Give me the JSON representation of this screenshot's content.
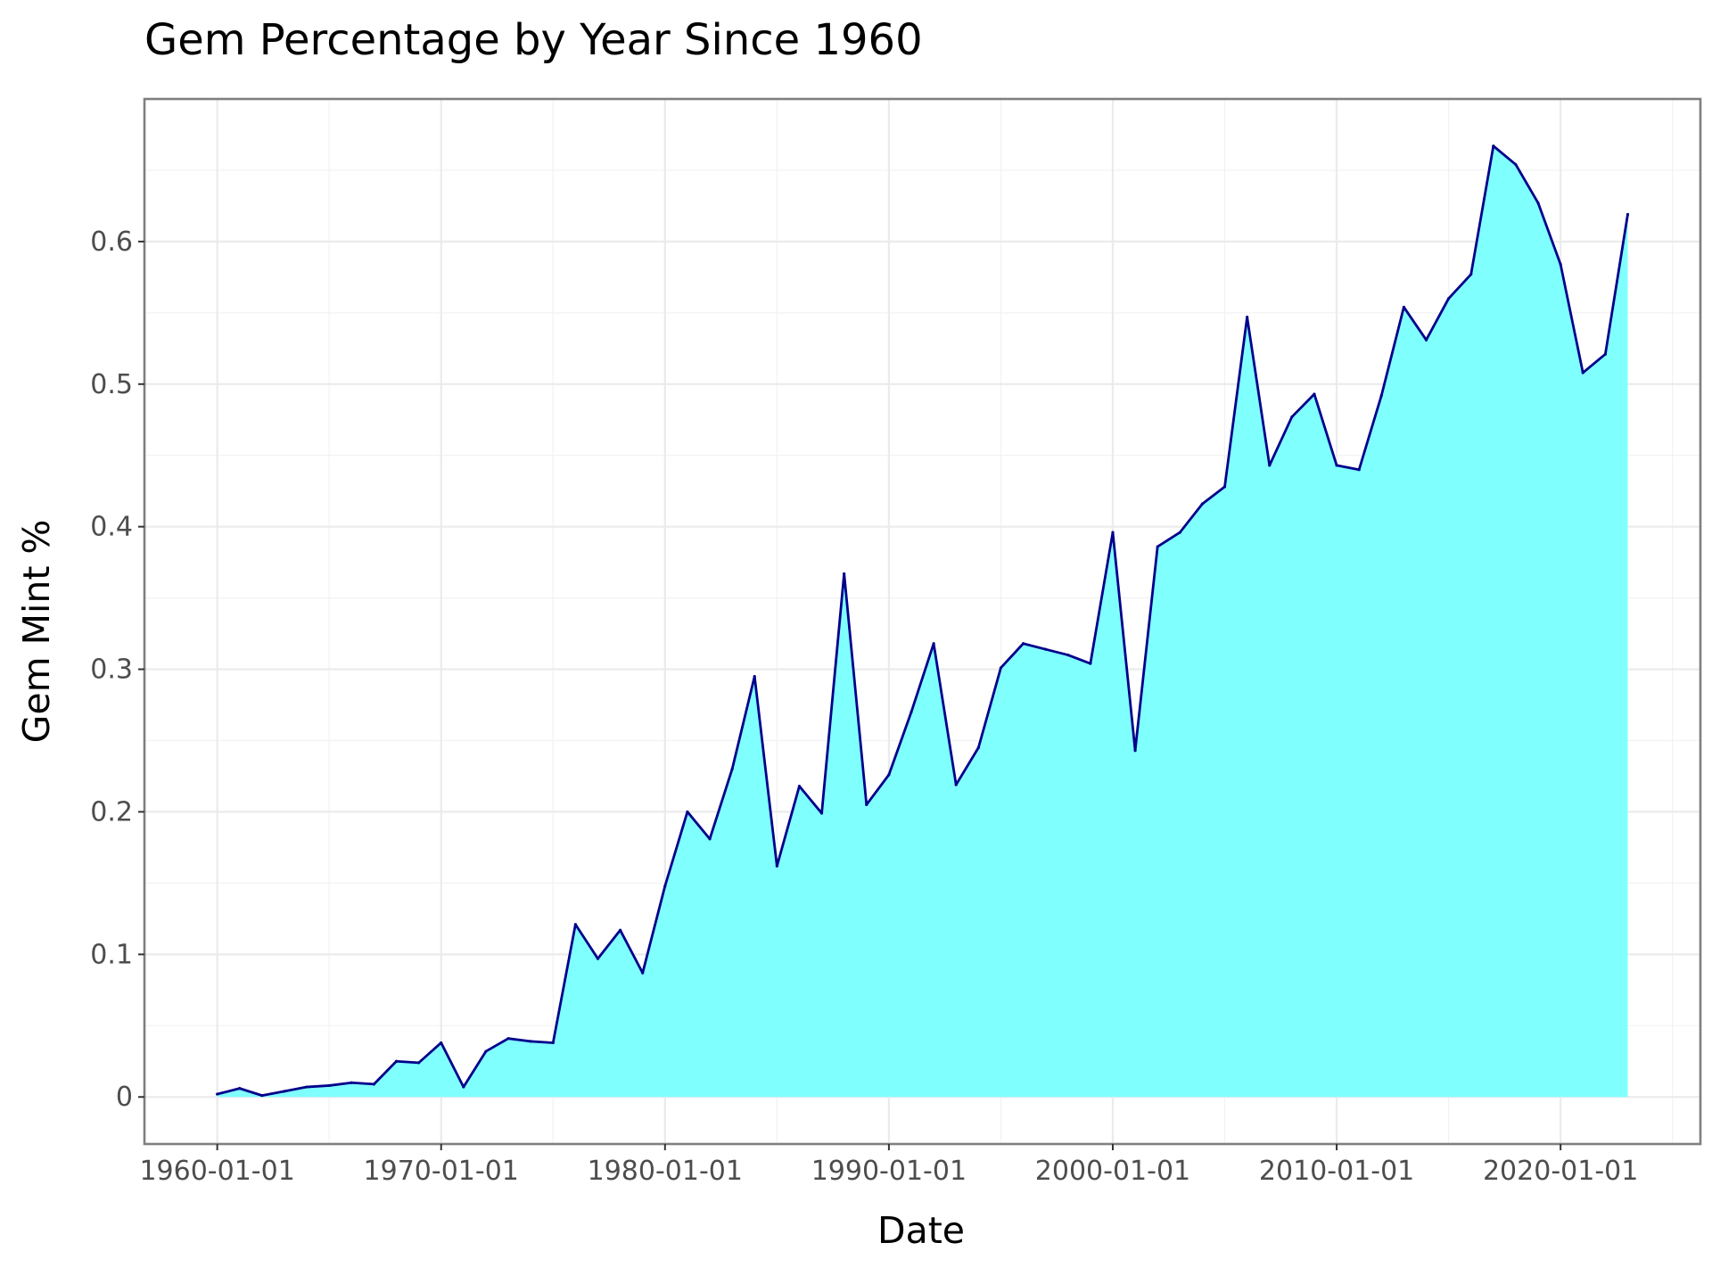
{
  "chart_data": {
    "type": "area",
    "title": "Gem Percentage by Year Since 1960",
    "xlabel": "Date",
    "ylabel": "Gem Mint %",
    "x_ticks": [
      "1960-01-01",
      "1970-01-01",
      "1980-01-01",
      "1990-01-01",
      "2000-01-01",
      "2010-01-01",
      "2020-01-01"
    ],
    "y_ticks": [
      "0",
      "0.1",
      "0.2",
      "0.3",
      "0.4",
      "0.5",
      "0.6"
    ],
    "x_range": [
      "1956-10-01",
      "2026-04-01"
    ],
    "ylim": [
      -0.033,
      0.7
    ],
    "grid": true,
    "fill_color": "#80ffff",
    "line_color": "#00008b",
    "series": [
      {
        "x": [
          1960,
          1961,
          1962,
          1963,
          1964,
          1965,
          1966,
          1967,
          1968,
          1969,
          1970,
          1971,
          1972,
          1973,
          1974,
          1975,
          1976,
          1977,
          1978,
          1979,
          1980,
          1981,
          1982,
          1983,
          1984,
          1985,
          1986,
          1987,
          1988,
          1989,
          1990,
          1991,
          1992,
          1993,
          1994,
          1995,
          1996,
          1997,
          1998,
          1999,
          2000,
          2001,
          2002,
          2003,
          2004,
          2005,
          2006,
          2007,
          2008,
          2009,
          2010,
          2011,
          2012,
          2013,
          2014,
          2015,
          2016,
          2017,
          2018,
          2019,
          2020,
          2021,
          2022,
          2023
        ],
        "values": [
          0.002,
          0.006,
          0.001,
          0.004,
          0.007,
          0.008,
          0.01,
          0.009,
          0.025,
          0.024,
          0.038,
          0.007,
          0.032,
          0.041,
          0.039,
          0.038,
          0.121,
          0.097,
          0.117,
          0.087,
          0.148,
          0.2,
          0.181,
          0.23,
          0.295,
          0.162,
          0.218,
          0.199,
          0.367,
          0.205,
          0.226,
          0.27,
          0.318,
          0.219,
          0.245,
          0.301,
          0.318,
          0.314,
          0.31,
          0.304,
          0.396,
          0.243,
          0.386,
          0.396,
          0.416,
          0.428,
          0.547,
          0.443,
          0.477,
          0.493,
          0.443,
          0.44,
          0.492,
          0.554,
          0.531,
          0.56,
          0.577,
          0.667,
          0.654,
          0.627,
          0.584,
          0.508,
          0.521,
          0.619
        ]
      }
    ]
  }
}
